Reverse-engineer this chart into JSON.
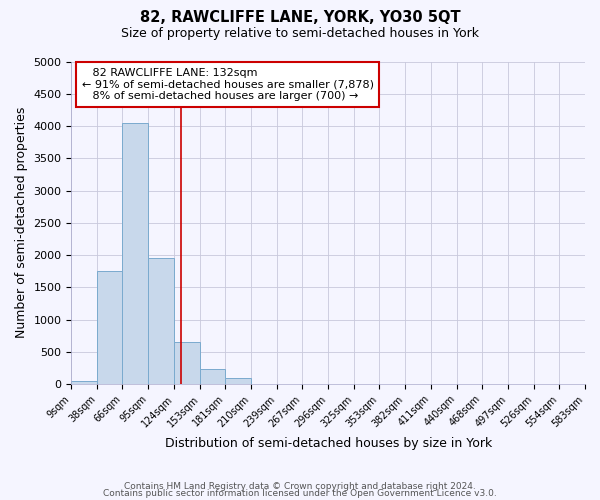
{
  "title": "82, RAWCLIFFE LANE, YORK, YO30 5QT",
  "subtitle": "Size of property relative to semi-detached houses in York",
  "xlabel": "Distribution of semi-detached houses by size in York",
  "ylabel": "Number of semi-detached properties",
  "bar_color": "#c8d8eb",
  "bar_edge_color": "#7aaace",
  "bin_edges": [
    9,
    38,
    66,
    95,
    124,
    153,
    181,
    210,
    239,
    267,
    296,
    325,
    353,
    382,
    411,
    440,
    468,
    497,
    526,
    554,
    583
  ],
  "bin_labels": [
    "9sqm",
    "38sqm",
    "66sqm",
    "95sqm",
    "124sqm",
    "153sqm",
    "181sqm",
    "210sqm",
    "239sqm",
    "267sqm",
    "296sqm",
    "325sqm",
    "353sqm",
    "382sqm",
    "411sqm",
    "440sqm",
    "468sqm",
    "497sqm",
    "526sqm",
    "554sqm",
    "583sqm"
  ],
  "counts": [
    50,
    1750,
    4050,
    1950,
    650,
    240,
    100,
    0,
    0,
    0,
    0,
    0,
    0,
    0,
    0,
    0,
    0,
    0,
    0,
    0
  ],
  "property_size": 132,
  "property_label": "82 RAWCLIFFE LANE: 132sqm",
  "pct_smaller": 91,
  "n_smaller": 7878,
  "pct_larger": 8,
  "n_larger": 700,
  "vline_color": "#cc0000",
  "annotation_box_color": "#ffffff",
  "annotation_box_edge": "#cc0000",
  "ylim": [
    0,
    5000
  ],
  "yticks": [
    0,
    500,
    1000,
    1500,
    2000,
    2500,
    3000,
    3500,
    4000,
    4500,
    5000
  ],
  "footer_line1": "Contains HM Land Registry data © Crown copyright and database right 2024.",
  "footer_line2": "Contains public sector information licensed under the Open Government Licence v3.0.",
  "background_color": "#f5f5ff",
  "grid_color": "#c8c8dc"
}
